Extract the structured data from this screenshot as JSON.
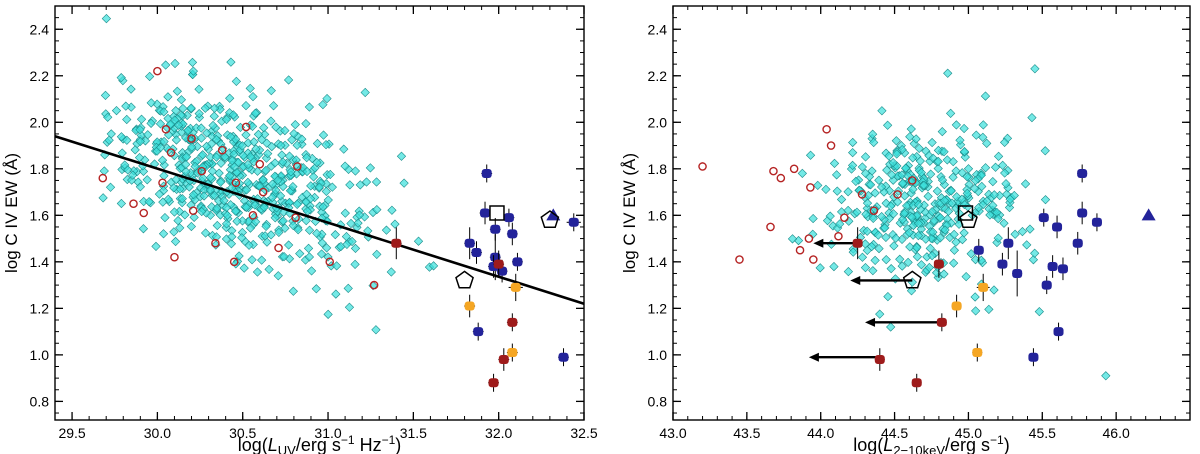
{
  "colors": {
    "cyan": "#3fe0dc",
    "cyan_edge": "#1a8c8a",
    "red_ring": "#b52323",
    "dark_red": "#9e1b1b",
    "orange": "#f5a623",
    "navy": "#23239a",
    "black": "#000000"
  },
  "chart_data": [
    {
      "type": "scatter",
      "name": "left-panel",
      "xlabel_parts": {
        "pre": "log(",
        "main": "L",
        "sub": "UV",
        "post": "/erg s",
        "sup1": "−1",
        "mid": " Hz",
        "sup2": "−1",
        "end": ")"
      },
      "ylabel": "log C IV EW (Å)",
      "xlim": [
        29.4,
        32.5
      ],
      "ylim": [
        0.72,
        2.5
      ],
      "xticks": [
        "29.5",
        "30.0",
        "30.5",
        "31.0",
        "31.5",
        "32.0",
        "32.5"
      ],
      "xtick_values": [
        29.5,
        30.0,
        30.5,
        31.0,
        31.5,
        32.0,
        32.5
      ],
      "yticks": [
        "0.8",
        "1.0",
        "1.2",
        "1.4",
        "1.6",
        "1.8",
        "2.0",
        "2.2",
        "2.4"
      ],
      "ytick_values": [
        0.8,
        1.0,
        1.2,
        1.4,
        1.6,
        1.8,
        2.0,
        2.2,
        2.4
      ],
      "fit_line": {
        "x": [
          29.4,
          32.5
        ],
        "y": [
          1.94,
          1.22
        ]
      },
      "cloud": {
        "n": 640,
        "x_center": 30.45,
        "x_sd": 0.42,
        "x_range": [
          29.65,
          31.65
        ],
        "y_intercept": 1.78,
        "y_slope": -0.23,
        "y_sd": 0.17,
        "seed": 11
      },
      "red_ring_points": [
        {
          "x": 30.0,
          "y": 2.22
        },
        {
          "x": 30.05,
          "y": 1.97
        },
        {
          "x": 29.68,
          "y": 1.76
        },
        {
          "x": 30.08,
          "y": 1.87
        },
        {
          "x": 30.2,
          "y": 1.93
        },
        {
          "x": 29.86,
          "y": 1.65
        },
        {
          "x": 30.03,
          "y": 1.74
        },
        {
          "x": 30.38,
          "y": 1.88
        },
        {
          "x": 30.52,
          "y": 1.98
        },
        {
          "x": 30.6,
          "y": 1.82
        },
        {
          "x": 30.82,
          "y": 1.81
        },
        {
          "x": 30.46,
          "y": 1.74
        },
        {
          "x": 30.56,
          "y": 1.6
        },
        {
          "x": 30.34,
          "y": 1.48
        },
        {
          "x": 30.1,
          "y": 1.42
        },
        {
          "x": 30.21,
          "y": 1.62
        },
        {
          "x": 30.71,
          "y": 1.46
        },
        {
          "x": 31.01,
          "y": 1.4
        },
        {
          "x": 30.81,
          "y": 1.59
        },
        {
          "x": 31.27,
          "y": 1.3
        },
        {
          "x": 30.45,
          "y": 1.4
        },
        {
          "x": 30.26,
          "y": 1.79
        },
        {
          "x": 30.62,
          "y": 1.7
        },
        {
          "x": 29.92,
          "y": 1.61
        }
      ],
      "dark_red_points": [
        {
          "x": 31.4,
          "y": 1.48,
          "xerr": 0.02,
          "yerr": 0.06
        },
        {
          "x": 32.0,
          "y": 1.39,
          "xerr": 0.02,
          "yerr": 0.05
        },
        {
          "x": 32.08,
          "y": 1.14,
          "xerr": 0.02,
          "yerr": 0.03
        },
        {
          "x": 32.03,
          "y": 0.98,
          "xerr": 0.02,
          "yerr": 0.04
        },
        {
          "x": 31.97,
          "y": 0.88,
          "xerr": 0.02,
          "yerr": 0.03
        }
      ],
      "orange_points": [
        {
          "x": 31.83,
          "y": 1.21,
          "xerr": 0.02,
          "yerr": 0.04
        },
        {
          "x": 32.1,
          "y": 1.29,
          "xerr": 0.03,
          "yerr": 0.05
        },
        {
          "x": 32.08,
          "y": 1.01,
          "xerr": 0.02,
          "yerr": 0.03
        }
      ],
      "navy_points": [
        {
          "x": 31.93,
          "y": 1.78,
          "xerr": 0.02,
          "yerr": 0.03
        },
        {
          "x": 31.92,
          "y": 1.61,
          "xerr": 0.02,
          "yerr": 0.04
        },
        {
          "x": 31.98,
          "y": 1.54,
          "xerr": 0.02,
          "yerr": 0.04
        },
        {
          "x": 32.06,
          "y": 1.59,
          "xerr": 0.02,
          "yerr": 0.03
        },
        {
          "x": 32.08,
          "y": 1.52,
          "xerr": 0.02,
          "yerr": 0.04
        },
        {
          "x": 31.83,
          "y": 1.48,
          "xerr": 0.02,
          "yerr": 0.06
        },
        {
          "x": 31.87,
          "y": 1.44,
          "xerr": 0.02,
          "yerr": 0.04
        },
        {
          "x": 31.98,
          "y": 1.42,
          "xerr": 0.02,
          "yerr": 0.09
        },
        {
          "x": 31.97,
          "y": 1.38,
          "xerr": 0.02,
          "yerr": 0.04
        },
        {
          "x": 32.02,
          "y": 1.36,
          "xerr": 0.02,
          "yerr": 0.04
        },
        {
          "x": 32.11,
          "y": 1.4,
          "xerr": 0.02,
          "yerr": 0.03
        },
        {
          "x": 31.88,
          "y": 1.1,
          "xerr": 0.02,
          "yerr": 0.03
        },
        {
          "x": 32.44,
          "y": 1.57,
          "xerr": 0.03,
          "yerr": 0.03
        },
        {
          "x": 32.38,
          "y": 0.99,
          "xerr": 0.02,
          "yerr": 0.03
        }
      ],
      "triangle_points": [
        {
          "x": 32.32,
          "y": 1.6
        }
      ],
      "square_markers": [
        {
          "x": 31.99,
          "y": 1.61
        }
      ],
      "pentagon_markers": [
        {
          "x": 31.8,
          "y": 1.32
        },
        {
          "x": 32.3,
          "y": 1.58
        }
      ],
      "arrows": []
    },
    {
      "type": "scatter",
      "name": "right-panel",
      "xlabel_parts": {
        "pre": "log(",
        "main": "L",
        "sub": "2−10keV",
        "post": "/erg s",
        "sup1": "−1",
        "mid": "",
        "sup2": "",
        "end": ")"
      },
      "ylabel": "log C IV EW (Å)",
      "xlim": [
        43.0,
        46.5
      ],
      "ylim": [
        0.72,
        2.5
      ],
      "xticks": [
        "43.0",
        "43.5",
        "44.0",
        "44.5",
        "45.0",
        "45.5",
        "46.0"
      ],
      "xtick_values": [
        43.0,
        43.5,
        44.0,
        44.5,
        45.0,
        45.5,
        46.0
      ],
      "yticks": [
        "0.8",
        "1.0",
        "1.2",
        "1.4",
        "1.6",
        "1.8",
        "2.0",
        "2.2",
        "2.4"
      ],
      "ytick_values": [
        0.8,
        1.0,
        1.2,
        1.4,
        1.6,
        1.8,
        2.0,
        2.2,
        2.4
      ],
      "fit_line": null,
      "cloud": {
        "n": 400,
        "x_center": 44.7,
        "x_sd": 0.33,
        "x_range": [
          43.8,
          45.55
        ],
        "y_intercept": 1.63,
        "y_slope": 0.0,
        "y_sd": 0.17,
        "seed": 29
      },
      "extra_cyan": [
        {
          "x": 45.93,
          "y": 0.91
        },
        {
          "x": 45.45,
          "y": 2.23
        },
        {
          "x": 45.43,
          "y": 2.02
        }
      ],
      "red_ring_points": [
        {
          "x": 43.2,
          "y": 1.81
        },
        {
          "x": 43.68,
          "y": 1.79
        },
        {
          "x": 43.73,
          "y": 1.76
        },
        {
          "x": 43.82,
          "y": 1.8
        },
        {
          "x": 43.93,
          "y": 1.72
        },
        {
          "x": 44.04,
          "y": 1.97
        },
        {
          "x": 44.07,
          "y": 1.9
        },
        {
          "x": 43.66,
          "y": 1.55
        },
        {
          "x": 43.45,
          "y": 1.41
        },
        {
          "x": 43.92,
          "y": 1.5
        },
        {
          "x": 43.86,
          "y": 1.45
        },
        {
          "x": 43.95,
          "y": 1.41
        },
        {
          "x": 44.16,
          "y": 1.59
        },
        {
          "x": 44.12,
          "y": 1.51
        },
        {
          "x": 44.28,
          "y": 1.69
        },
        {
          "x": 44.52,
          "y": 1.69
        },
        {
          "x": 44.62,
          "y": 1.75
        },
        {
          "x": 44.36,
          "y": 1.62
        }
      ],
      "dark_red_points": [
        {
          "x": 44.25,
          "y": 1.48,
          "xerr": 0.02,
          "yerr": 0.06
        },
        {
          "x": 44.8,
          "y": 1.39,
          "xerr": 0.02,
          "yerr": 0.05
        },
        {
          "x": 44.82,
          "y": 1.14,
          "xerr": 0.02,
          "yerr": 0.03
        },
        {
          "x": 44.4,
          "y": 0.98,
          "xerr": 0.02,
          "yerr": 0.04
        },
        {
          "x": 44.65,
          "y": 0.88,
          "xerr": 0.02,
          "yerr": 0.03
        }
      ],
      "orange_points": [
        {
          "x": 44.92,
          "y": 1.21,
          "xerr": 0.02,
          "yerr": 0.04
        },
        {
          "x": 45.1,
          "y": 1.29,
          "xerr": 0.03,
          "yerr": 0.05
        },
        {
          "x": 45.06,
          "y": 1.01,
          "xerr": 0.02,
          "yerr": 0.03
        }
      ],
      "navy_points": [
        {
          "x": 45.77,
          "y": 1.78,
          "xerr": 0.02,
          "yerr": 0.03
        },
        {
          "x": 45.77,
          "y": 1.61,
          "xerr": 0.02,
          "yerr": 0.04
        },
        {
          "x": 45.51,
          "y": 1.59,
          "xerr": 0.02,
          "yerr": 0.03
        },
        {
          "x": 45.6,
          "y": 1.55,
          "xerr": 0.02,
          "yerr": 0.04
        },
        {
          "x": 45.87,
          "y": 1.57,
          "xerr": 0.02,
          "yerr": 0.03
        },
        {
          "x": 45.27,
          "y": 1.48,
          "xerr": 0.02,
          "yerr": 0.06
        },
        {
          "x": 45.74,
          "y": 1.48,
          "xerr": 0.02,
          "yerr": 0.04
        },
        {
          "x": 45.07,
          "y": 1.45,
          "xerr": 0.02,
          "yerr": 0.04
        },
        {
          "x": 45.23,
          "y": 1.39,
          "xerr": 0.02,
          "yerr": 0.04
        },
        {
          "x": 45.57,
          "y": 1.38,
          "xerr": 0.02,
          "yerr": 0.04
        },
        {
          "x": 45.64,
          "y": 1.37,
          "xerr": 0.02,
          "yerr": 0.04
        },
        {
          "x": 45.33,
          "y": 1.35,
          "xerr": 0.02,
          "yerr": 0.09
        },
        {
          "x": 45.53,
          "y": 1.3,
          "xerr": 0.02,
          "yerr": 0.03
        },
        {
          "x": 45.61,
          "y": 1.1,
          "xerr": 0.02,
          "yerr": 0.03
        },
        {
          "x": 45.44,
          "y": 0.99,
          "xerr": 0.02,
          "yerr": 0.03
        }
      ],
      "triangle_points": [
        {
          "x": 46.22,
          "y": 1.6
        }
      ],
      "square_markers": [
        {
          "x": 44.98,
          "y": 1.61
        }
      ],
      "pentagon_markers": [
        {
          "x": 44.62,
          "y": 1.32
        },
        {
          "x": 45.0,
          "y": 1.58
        }
      ],
      "arrows": [
        {
          "x_from": 44.25,
          "x_to": 43.95,
          "y": 1.48
        },
        {
          "x_from": 44.62,
          "x_to": 44.2,
          "y": 1.32
        },
        {
          "x_from": 44.82,
          "x_to": 44.3,
          "y": 1.14
        },
        {
          "x_from": 44.4,
          "x_to": 43.92,
          "y": 0.99
        }
      ]
    }
  ]
}
